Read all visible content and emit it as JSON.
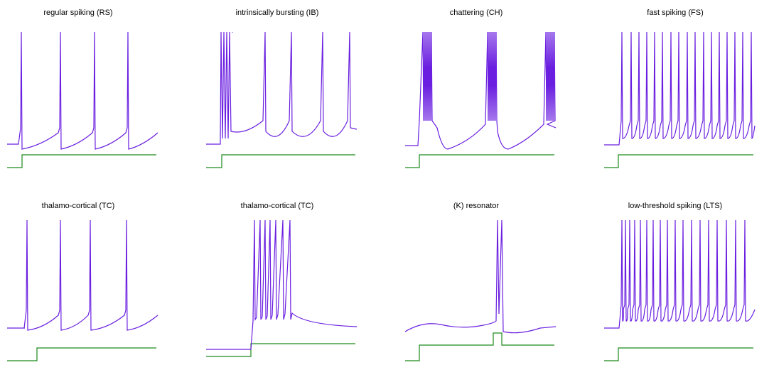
{
  "colors": {
    "voltage": "#6a1fe0",
    "current": "#1a8a1a",
    "background": "#ffffff"
  },
  "chart_data": [
    {
      "type": "line",
      "title": "regular spiking (RS)",
      "pattern": "rs",
      "series": [
        {
          "kind": "voltage",
          "spikes": [
            30,
            85,
            133,
            180
          ]
        },
        {
          "kind": "current",
          "step_on": 31
        }
      ]
    },
    {
      "type": "line",
      "title": "intrinsically bursting (IB)",
      "pattern": "ib",
      "series": [
        {
          "kind": "voltage",
          "spikes": [
            311,
            315,
            319,
            323,
            327,
            373,
            410,
            454,
            492
          ]
        },
        {
          "kind": "current",
          "step_on": 312
        }
      ]
    },
    {
      "type": "line",
      "title": "chattering (CH)",
      "pattern": "ch",
      "series": [
        {
          "kind": "voltage",
          "bursts": [
            595,
            686,
            768
          ]
        },
        {
          "kind": "current",
          "step_on": 590
        }
      ]
    },
    {
      "type": "line",
      "title": "fast spiking (FS)",
      "pattern": "fs",
      "series": [
        {
          "kind": "voltage",
          "spikes": [
            875,
            888,
            899,
            910,
            921,
            932,
            944,
            955,
            967,
            978,
            990,
            1001,
            1012,
            1023,
            1034,
            1045,
            1057
          ]
        },
        {
          "kind": "current",
          "step_on": 870
        }
      ]
    },
    {
      "type": "line",
      "title": "thalamo-cortical (TC)",
      "pattern": "tc",
      "series": [
        {
          "kind": "voltage",
          "spikes": [
            38,
            85,
            127,
            178
          ]
        },
        {
          "kind": "current",
          "step_on": 52
        }
      ]
    },
    {
      "type": "line",
      "title": "thalamo-cortical (TC)",
      "pattern": "tc2",
      "series": [
        {
          "kind": "voltage",
          "spikes": [
            358,
            366,
            373,
            380,
            388,
            398,
            408
          ]
        },
        {
          "kind": "current",
          "step_on": 353,
          "start_level": "low"
        }
      ]
    },
    {
      "type": "line",
      "title": "(K) resonator",
      "pattern": "res",
      "series": [
        {
          "kind": "voltage",
          "spikes": [
            700,
            706
          ]
        },
        {
          "kind": "current",
          "step_on": 590,
          "pulse": [
            694,
            706
          ]
        }
      ]
    },
    {
      "type": "line",
      "title": "low-threshold spiking (LTS)",
      "pattern": "lts",
      "series": [
        {
          "kind": "voltage",
          "spikes": [
            875,
            880,
            886,
            893,
            901,
            910,
            919,
            929,
            939,
            950,
            961,
            973,
            985,
            997,
            1009,
            1022,
            1035,
            1048
          ]
        },
        {
          "kind": "current",
          "step_on": 870
        }
      ]
    }
  ]
}
